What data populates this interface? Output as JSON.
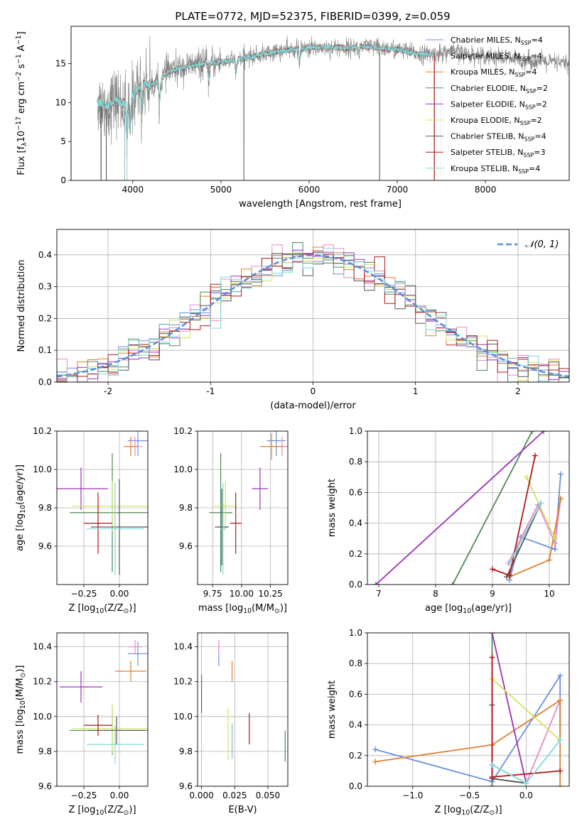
{
  "colors": {
    "Chabrier MILES": "#6a8fdc",
    "Salpeter MILES": "#e889c6",
    "Kroupa MILES": "#df7f2f",
    "Chabrier ELODIE": "#4e8a56",
    "Salpeter ELODIE": "#9b32b5",
    "Kroupa ELODIE": "#cfe45f",
    "Chabrier STELIB": "#555555",
    "Salpeter STELIB": "#b01818",
    "Kroupa STELIB": "#7dd9dc",
    "normal": "#5b8bd8",
    "data": "#808080"
  },
  "legend_labels": [
    "Chabrier MILES, N<sub>SSP</sub>=4",
    "Salpeter MILES, N<sub>SSP</sub>=4",
    "Kroupa MILES, N<sub>SSP</sub>=4",
    "Chabrier ELODIE, N<sub>SSP</sub>=2",
    "Salpeter ELODIE, N<sub>SSP</sub>=2",
    "Kroupa ELODIE, N<sub>SSP</sub>=2",
    "Chabrier STELIB, N<sub>SSP</sub>=4",
    "Salpeter STELIB, N<sub>SSP</sub>=3",
    "Kroupa STELIB, N<sub>SSP</sub>=4"
  ],
  "title": "PLATE=0772, MJD=52375, FIBERID=0399, z=0.059",
  "chart_data": [
    {
      "id": "spectrum",
      "type": "line",
      "xlabel": "wavelength [Angstrom, rest frame]",
      "ylabel": "Flux [f<sub>λ</sub>10<sup>−17</sup> erg cm<sup>−2</sup> s<sup>−1</sup> A<sup>−1</sup>]",
      "xlim": [
        3300,
        8950
      ],
      "ylim": [
        0,
        19.8
      ],
      "xticks": [
        4000,
        5000,
        6000,
        7000,
        8000
      ],
      "yticks": [
        0,
        5,
        10,
        15
      ],
      "grid": false,
      "legend_position": "upper right",
      "continuum": [
        [
          3600,
          10.0
        ],
        [
          3700,
          9.5
        ],
        [
          3800,
          10.2
        ],
        [
          3900,
          9.8
        ],
        [
          4000,
          10.8
        ],
        [
          4100,
          12.5
        ],
        [
          4200,
          12.2
        ],
        [
          4300,
          12.8
        ],
        [
          4400,
          14.0
        ],
        [
          4600,
          14.6
        ],
        [
          4800,
          15.0
        ],
        [
          5000,
          15.2
        ],
        [
          5200,
          15.6
        ],
        [
          5400,
          16.0
        ],
        [
          5600,
          16.5
        ],
        [
          5800,
          16.8
        ],
        [
          6000,
          17.0
        ],
        [
          6200,
          17.1
        ],
        [
          6400,
          17.0
        ],
        [
          6600,
          17.2
        ],
        [
          6800,
          17.0
        ],
        [
          7000,
          16.8
        ],
        [
          7200,
          16.3
        ],
        [
          7400,
          16.2
        ],
        [
          7600,
          16.5
        ],
        [
          7800,
          16.2
        ],
        [
          8000,
          16.1
        ],
        [
          8200,
          15.7
        ],
        [
          8400,
          15.5
        ],
        [
          8600,
          15.3
        ],
        [
          8800,
          15.1
        ],
        [
          8950,
          15.0
        ]
      ],
      "features": [
        {
          "x": 3934,
          "depth": 4.5
        },
        {
          "x": 3969,
          "depth": 4.0
        },
        {
          "x": 4102,
          "depth": 3.0
        },
        {
          "x": 4304,
          "depth": 2.5
        },
        {
          "x": 4861,
          "depth": 2.0
        },
        {
          "x": 5175,
          "depth": 1.5
        },
        {
          "x": 5893,
          "depth": 1.5
        },
        {
          "x": 6563,
          "depth": 1.0
        }
      ],
      "spikes": [
        3640,
        3700,
        3910,
        5260,
        6800,
        7420
      ],
      "model_end": 7420
    },
    {
      "id": "residuals",
      "type": "histogram",
      "xlabel": "(data-model)/error",
      "ylabel": "Normed distribution",
      "xlim": [
        -2.5,
        2.5
      ],
      "ylim": [
        0,
        0.48
      ],
      "xticks": [
        -2,
        -1,
        0,
        1,
        2
      ],
      "yticks": [
        0.0,
        0.1,
        0.2,
        0.3,
        0.4
      ],
      "grid": true,
      "legend_position": "upper right",
      "legend_label": "𝒩(0, 1)"
    },
    {
      "id": "age_vs_Z",
      "type": "errorbar",
      "xlabel": "Z [log<sub>10</sub>(Z/Z<sub>⊙</sub>)]",
      "ylabel": "age  [log<sub>10</sub>(age/yr)]",
      "xlim": [
        -0.44,
        0.2
      ],
      "ylim": [
        9.4,
        10.2
      ],
      "xticks": [
        -0.25,
        0.0
      ],
      "xticklabels": [
        "−0.25",
        "0.00"
      ],
      "yticks": [
        9.6,
        9.8,
        10.0,
        10.2
      ],
      "grid": true,
      "points": [
        {
          "model": "Chabrier MILES",
          "x": 0.13,
          "xerr": 0.07,
          "y": 10.15,
          "yerr": 0.08
        },
        {
          "model": "Salpeter MILES",
          "x": 0.11,
          "xerr": 0.05,
          "y": 10.12,
          "yerr": 0.05
        },
        {
          "model": "Kroupa MILES",
          "x": 0.08,
          "xerr": 0.05,
          "y": 10.12,
          "yerr": 0.05
        },
        {
          "model": "Chabrier ELODIE",
          "x": -0.05,
          "xerr": 0.3,
          "y": 9.775,
          "yerr": 0.31
        },
        {
          "model": "Salpeter ELODIE",
          "x": -0.27,
          "xerr": 0.19,
          "y": 9.9,
          "yerr": 0.11
        },
        {
          "model": "Kroupa ELODIE",
          "x": -0.05,
          "xerr": 0.28,
          "y": 9.81,
          "yerr": 0.13
        },
        {
          "model": "Chabrier STELIB",
          "x": 0.0,
          "xerr": 0.2,
          "y": 9.7,
          "yerr": 0.25
        },
        {
          "model": "Salpeter STELIB",
          "x": -0.15,
          "xerr": 0.1,
          "y": 9.72,
          "yerr": 0.16
        },
        {
          "model": "Kroupa STELIB",
          "x": -0.03,
          "xerr": 0.2,
          "y": 9.69,
          "yerr": 0.24
        }
      ]
    },
    {
      "id": "age_vs_mass",
      "type": "errorbar",
      "xlabel": "mass [log<sub>10</sub>(M/M<sub>⊙</sub>)]",
      "ylabel": "",
      "xlim": [
        9.62,
        10.4
      ],
      "ylim": [
        9.4,
        10.2
      ],
      "xticks": [
        9.75,
        10.0,
        10.25
      ],
      "xticklabels": [
        "9.75",
        "10.00",
        "10.25"
      ],
      "yticks": [
        9.6,
        9.8,
        10.0,
        10.2
      ],
      "grid": true,
      "points": [
        {
          "model": "Chabrier MILES",
          "x": 10.3,
          "xerr": 0.08,
          "y": 10.15,
          "yerr": 0.08
        },
        {
          "model": "Salpeter MILES",
          "x": 10.35,
          "xerr": 0.06,
          "y": 10.12,
          "yerr": 0.05
        },
        {
          "model": "Kroupa MILES",
          "x": 10.26,
          "xerr": 0.1,
          "y": 10.12,
          "yerr": 0.07
        },
        {
          "model": "Chabrier ELODIE",
          "x": 9.82,
          "xerr": 0.1,
          "y": 9.775,
          "yerr": 0.31
        },
        {
          "model": "Salpeter ELODIE",
          "x": 10.16,
          "xerr": 0.07,
          "y": 9.9,
          "yerr": 0.11
        },
        {
          "model": "Kroupa ELODIE",
          "x": 9.86,
          "xerr": 0.1,
          "y": 9.81,
          "yerr": 0.13
        },
        {
          "model": "Chabrier STELIB",
          "x": 9.83,
          "xerr": 0.06,
          "y": 9.7,
          "yerr": 0.2
        },
        {
          "model": "Salpeter STELIB",
          "x": 9.95,
          "xerr": 0.05,
          "y": 9.72,
          "yerr": 0.16
        },
        {
          "model": "Kroupa STELIB",
          "x": 9.84,
          "xerr": 0.02,
          "y": 9.69,
          "yerr": 0.24
        }
      ]
    },
    {
      "id": "weight_vs_age",
      "type": "line",
      "xlabel": "age  [log<sub>10</sub>(age/yr)]",
      "ylabel": "mass weight",
      "xlim": [
        6.8,
        10.35
      ],
      "ylim": [
        0,
        1.0
      ],
      "xticks": [
        7,
        8,
        9,
        10
      ],
      "yticks": [
        0.0,
        0.2,
        0.4,
        0.6,
        0.8,
        1.0
      ],
      "grid": true,
      "series": [
        {
          "model": "Chabrier MILES",
          "x": [
            9.3,
            9.5,
            10.1,
            10.2
          ],
          "y": [
            0.03,
            0.31,
            0.23,
            0.72
          ]
        },
        {
          "model": "Salpeter MILES",
          "x": [
            9.28,
            9.8,
            10.1,
            10.2
          ],
          "y": [
            0.14,
            0.52,
            0.27,
            0.56
          ]
        },
        {
          "model": "Kroupa MILES",
          "x": [
            9.3,
            10.0,
            10.2
          ],
          "y": [
            0.05,
            0.16,
            0.56
          ]
        },
        {
          "model": "Chabrier ELODIE",
          "x": [
            8.3,
            9.7
          ],
          "y": [
            0.0,
            1.0
          ]
        },
        {
          "model": "Salpeter ELODIE",
          "x": [
            6.95,
            9.9
          ],
          "y": [
            0.0,
            1.0
          ]
        },
        {
          "model": "Kroupa ELODIE",
          "x": [
            9.6,
            10.1
          ],
          "y": [
            0.7,
            0.3
          ]
        },
        {
          "model": "Chabrier STELIB",
          "x": [
            9.25,
            9.85
          ],
          "y": [
            0.05,
            0.53
          ]
        },
        {
          "model": "Salpeter STELIB",
          "x": [
            9.0,
            9.3,
            9.75
          ],
          "y": [
            0.1,
            0.06,
            0.84
          ]
        },
        {
          "model": "Kroupa STELIB",
          "x": [
            9.3,
            9.85
          ],
          "y": [
            0.14,
            0.53
          ]
        }
      ]
    },
    {
      "id": "mass_vs_Z",
      "type": "errorbar",
      "xlabel": "Z [log<sub>10</sub>(Z/Z<sub>⊙</sub>)]",
      "ylabel": "mass [log<sub>10</sub>(M/M<sub>⊙</sub>)]",
      "xlim": [
        -0.44,
        0.2
      ],
      "ylim": [
        9.6,
        10.48
      ],
      "xticks": [
        -0.25,
        0.0
      ],
      "xticklabels": [
        "−0.25",
        "0.00"
      ],
      "yticks": [
        9.6,
        9.8,
        10.0,
        10.2,
        10.4
      ],
      "grid": true,
      "points": [
        {
          "model": "Chabrier MILES",
          "x": 0.13,
          "xerr": 0.07,
          "y": 10.36,
          "yerr": 0.07
        },
        {
          "model": "Salpeter MILES",
          "x": 0.11,
          "xerr": 0.05,
          "y": 10.4,
          "yerr": 0.04
        },
        {
          "model": "Kroupa MILES",
          "x": 0.08,
          "xerr": 0.11,
          "y": 10.26,
          "yerr": 0.06
        },
        {
          "model": "Chabrier ELODIE",
          "x": -0.05,
          "xerr": 0.3,
          "y": 9.92,
          "yerr": 0.14
        },
        {
          "model": "Salpeter ELODIE",
          "x": -0.27,
          "xerr": 0.15,
          "y": 10.17,
          "yerr": 0.09
        },
        {
          "model": "Kroupa ELODIE",
          "x": -0.05,
          "xerr": 0.28,
          "y": 9.93,
          "yerr": 0.14
        },
        {
          "model": "Chabrier STELIB",
          "x": -0.02,
          "xerr": 0.2,
          "y": 9.92,
          "yerr": 0.08
        },
        {
          "model": "Salpeter STELIB",
          "x": -0.15,
          "xerr": 0.1,
          "y": 9.95,
          "yerr": 0.06
        },
        {
          "model": "Kroupa STELIB",
          "x": -0.03,
          "xerr": 0.2,
          "y": 9.84,
          "yerr": 0.11
        }
      ]
    },
    {
      "id": "mass_vs_ebv",
      "type": "errorbar",
      "xlabel": "E(B-V)",
      "ylabel": "",
      "xlim": [
        -0.003,
        0.065
      ],
      "ylim": [
        9.6,
        10.48
      ],
      "xticks": [
        0.0,
        0.025,
        0.05
      ],
      "xticklabels": [
        "0.000",
        "0.025",
        "0.050"
      ],
      "yticks": [
        9.6,
        9.8,
        10.0,
        10.2,
        10.4
      ],
      "grid": true,
      "points": [
        {
          "model": "Chabrier MILES",
          "x": 0.013,
          "xerr": 0,
          "y": 10.36,
          "yerr": 0.07
        },
        {
          "model": "Salpeter MILES",
          "x": 0.013,
          "xerr": 0,
          "y": 10.4,
          "yerr": 0.04
        },
        {
          "model": "Kroupa MILES",
          "x": 0.023,
          "xerr": 0,
          "y": 10.26,
          "yerr": 0.06
        },
        {
          "model": "Chabrier ELODIE",
          "x": 0.063,
          "xerr": 0,
          "y": 9.83,
          "yerr": 0.09
        },
        {
          "model": "Salpeter ELODIE",
          "x": 0.0,
          "xerr": 0,
          "y": 10.13,
          "yerr": 0.11
        },
        {
          "model": "Kroupa ELODIE",
          "x": 0.02,
          "xerr": 0,
          "y": 9.9,
          "yerr": 0.15
        },
        {
          "model": "Chabrier STELIB",
          "x": 0.023,
          "xerr": 0,
          "y": 9.86,
          "yerr": 0.1
        },
        {
          "model": "Salpeter STELIB",
          "x": 0.036,
          "xerr": 0,
          "y": 9.93,
          "yerr": 0.09
        },
        {
          "model": "Kroupa STELIB",
          "x": 0.023,
          "xerr": 0,
          "y": 9.86,
          "yerr": 0.1
        }
      ]
    },
    {
      "id": "weight_vs_Z",
      "type": "line",
      "xlabel": "Z [log<sub>10</sub>(Z/Z<sub>⊙</sub>)]",
      "ylabel": "mass weight",
      "xlim": [
        -1.4,
        0.38
      ],
      "ylim": [
        0,
        1.0
      ],
      "xticks": [
        -1.0,
        -0.5,
        0.0
      ],
      "xticklabels": [
        "−1.0",
        "−0.5",
        "0.0"
      ],
      "yticks": [
        0.0,
        0.2,
        0.4,
        0.6,
        0.8,
        1.0
      ],
      "grid": true,
      "series": [
        {
          "model": "Chabrier MILES",
          "x": [
            -1.33,
            -0.3,
            0.3,
            0.3
          ],
          "y": [
            0.24,
            0.03,
            0.72,
            0.3
          ]
        },
        {
          "model": "Salpeter MILES",
          "x": [
            -0.3,
            0.0,
            0.3,
            0.3
          ],
          "y": [
            0.14,
            0.02,
            0.56,
            0.3
          ]
        },
        {
          "model": "Kroupa MILES",
          "x": [
            -1.33,
            -0.3,
            0.3,
            0.3
          ],
          "y": [
            0.16,
            0.27,
            0.56,
            0.0
          ]
        },
        {
          "model": "Chabrier ELODIE",
          "x": [
            -0.3,
            -0.3
          ],
          "y": [
            0.0,
            1.0
          ]
        },
        {
          "model": "Salpeter ELODIE",
          "x": [
            -0.3,
            0.0
          ],
          "y": [
            1.0,
            0.02
          ]
        },
        {
          "model": "Kroupa ELODIE",
          "x": [
            -0.3,
            0.3
          ],
          "y": [
            0.7,
            0.3
          ]
        },
        {
          "model": "Chabrier STELIB",
          "x": [
            -0.3,
            -0.3,
            0.0
          ],
          "y": [
            0.53,
            0.05,
            0.02
          ]
        },
        {
          "model": "Salpeter STELIB",
          "x": [
            -0.3,
            -0.3,
            0.3
          ],
          "y": [
            0.84,
            0.06,
            0.1
          ]
        },
        {
          "model": "Kroupa STELIB",
          "x": [
            -0.3,
            0.0,
            0.3
          ],
          "y": [
            0.14,
            0.02,
            0.3
          ]
        }
      ]
    }
  ]
}
